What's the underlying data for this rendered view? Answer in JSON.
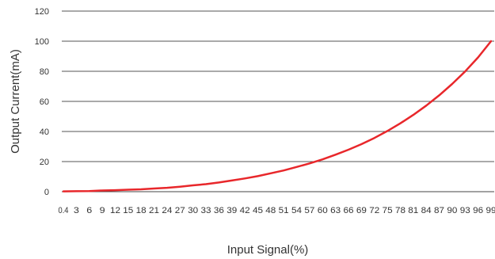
{
  "chart_data": {
    "type": "line",
    "title": "",
    "xlabel": "Input Signal(%)",
    "ylabel": "Output Current(mA)",
    "ylim": [
      0,
      120
    ],
    "yticks": [
      "0",
      "20",
      "40",
      "60",
      "80",
      "100",
      "120"
    ],
    "grid": true,
    "legend": "none",
    "x": [
      "0.4",
      "3",
      "6",
      "9",
      "12",
      "15",
      "18",
      "21",
      "24",
      "27",
      "30",
      "33",
      "36",
      "39",
      "42",
      "45",
      "48",
      "51",
      "54",
      "57",
      "60",
      "63",
      "66",
      "69",
      "72",
      "75",
      "78",
      "81",
      "84",
      "87",
      "90",
      "93",
      "96",
      "99"
    ],
    "series": [
      {
        "color": "#e8272b",
        "values": [
          0.2,
          0.3,
          0.4,
          0.8,
          1.0,
          1.3,
          1.6,
          2.1,
          2.6,
          3.3,
          4.2,
          5.0,
          6.1,
          7.4,
          8.8,
          10.3,
          12.2,
          14.1,
          16.4,
          18.8,
          21.5,
          24.6,
          27.9,
          31.6,
          35.7,
          40.3,
          45.4,
          51.0,
          57.2,
          64.0,
          71.6,
          79.9,
          89.2,
          100.0
        ]
      }
    ]
  }
}
